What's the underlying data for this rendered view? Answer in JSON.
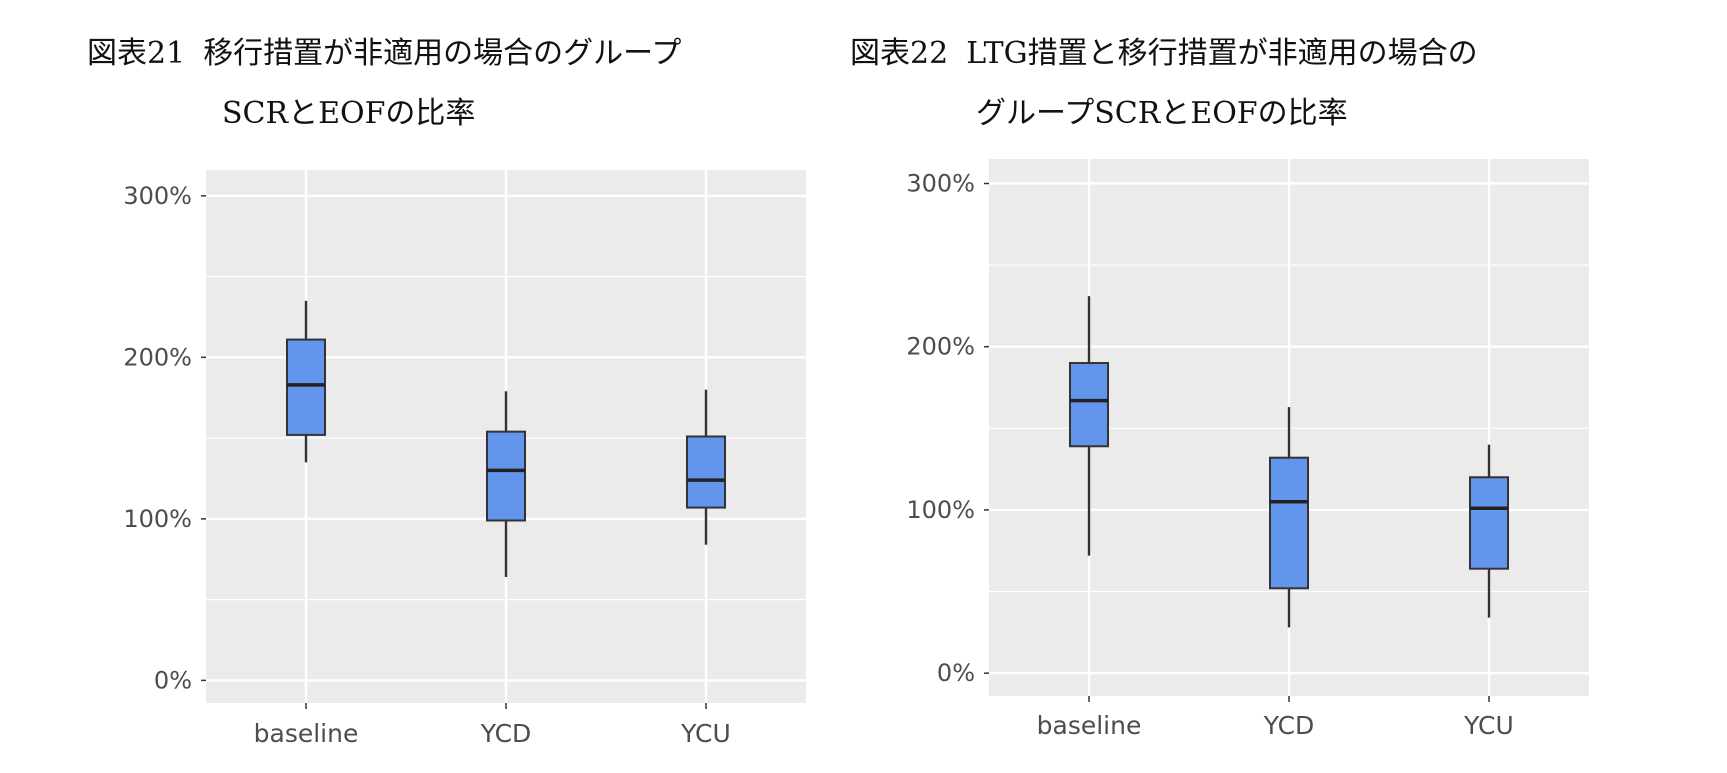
{
  "figures": [
    {
      "number": "図表21",
      "title_line1": "移行措置が非適用の場合のグループ",
      "title_line2": "SCRとEOFの比率"
    },
    {
      "number": "図表22",
      "title_line1": "LTG措置と移行措置が非適用の場合の",
      "title_line2": "グループSCRとEOFの比率"
    }
  ],
  "chart_data": [
    {
      "type": "boxplot",
      "title": "図表21 移行措置が非適用の場合のグループ SCRとEOFの比率",
      "categories": [
        "baseline",
        "YCD",
        "YCU"
      ],
      "series": [
        {
          "values": [
            {
              "whisker_low": 135,
              "q1": 152,
              "median": 183,
              "q3": 211,
              "whisker_high": 235
            },
            {
              "whisker_low": 64,
              "q1": 99,
              "median": 130,
              "q3": 154,
              "whisker_high": 179
            },
            {
              "whisker_low": 84,
              "q1": 107,
              "median": 124,
              "q3": 151,
              "whisker_high": 180
            }
          ]
        }
      ],
      "y_ticks": [
        "0%",
        "100%",
        "200%",
        "300%"
      ],
      "y_tick_values": [
        0,
        100,
        200,
        300
      ],
      "ylim": [
        -14,
        316
      ],
      "grid": true,
      "box_color": "#6495ED",
      "panel_color": "#EBEBEB"
    },
    {
      "type": "boxplot",
      "title": "図表22 LTG措置と移行措置が非適用の場合の グループSCRとEOFの比率",
      "categories": [
        "baseline",
        "YCD",
        "YCU"
      ],
      "series": [
        {
          "values": [
            {
              "whisker_low": 72,
              "q1": 139,
              "median": 167,
              "q3": 190,
              "whisker_high": 231
            },
            {
              "whisker_low": 28,
              "q1": 52,
              "median": 105,
              "q3": 132,
              "whisker_high": 163
            },
            {
              "whisker_low": 34,
              "q1": 64,
              "median": 101,
              "q3": 120,
              "whisker_high": 140
            }
          ]
        }
      ],
      "y_ticks": [
        "0%",
        "100%",
        "200%",
        "300%"
      ],
      "y_tick_values": [
        0,
        100,
        200,
        300
      ],
      "ylim": [
        -14,
        315
      ],
      "grid": true,
      "box_color": "#6495ED",
      "panel_color": "#EBEBEB"
    }
  ]
}
